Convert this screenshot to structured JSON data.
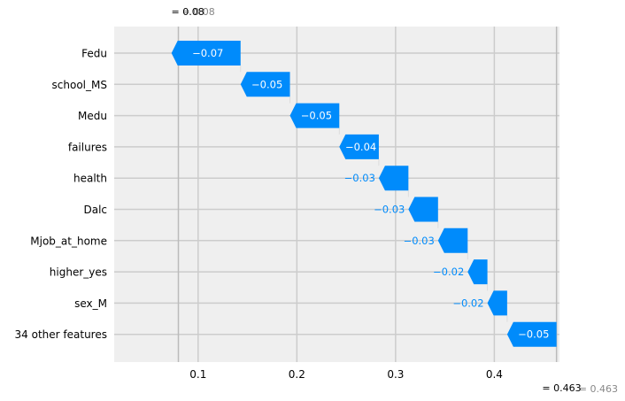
{
  "chart_data": {
    "type": "waterfall",
    "orientation": "horizontal",
    "features": [
      {
        "name": "Fedu",
        "value": -0.07
      },
      {
        "name": "school_MS",
        "value": -0.05
      },
      {
        "name": "Medu",
        "value": -0.05
      },
      {
        "name": "failures",
        "value": -0.04
      },
      {
        "name": "health",
        "value": -0.03
      },
      {
        "name": "Dalc",
        "value": -0.03
      },
      {
        "name": "Mjob_at_home",
        "value": -0.03
      },
      {
        "name": "higher_yes",
        "value": -0.02
      },
      {
        "name": "sex_M",
        "value": -0.02
      },
      {
        "name": "34 other features",
        "value": -0.05
      }
    ],
    "bar_labels": [
      "−0.07",
      "−0.05",
      "−0.05",
      "−0.04",
      "−0.03",
      "−0.03",
      "−0.03",
      "−0.02",
      "−0.02",
      "−0.05"
    ],
    "base_value": 0.463,
    "base_label": "= 0.463",
    "base_label_ghost": "= 0.463",
    "output_value": 0.08,
    "output_label": "= 0.08",
    "output_label_ghost": "= 0.08",
    "xlim": [
      0.015,
      0.466
    ],
    "xticks": [
      0.1,
      0.2,
      0.3,
      0.4
    ],
    "xtick_labels": [
      "0.1",
      "0.2",
      "0.3",
      "0.4"
    ],
    "grid": true,
    "colors": {
      "negative": "#008bfb",
      "background": "#efefef",
      "grid": "#cccccc",
      "text": "#000000",
      "ghost_text": "#888888"
    }
  }
}
